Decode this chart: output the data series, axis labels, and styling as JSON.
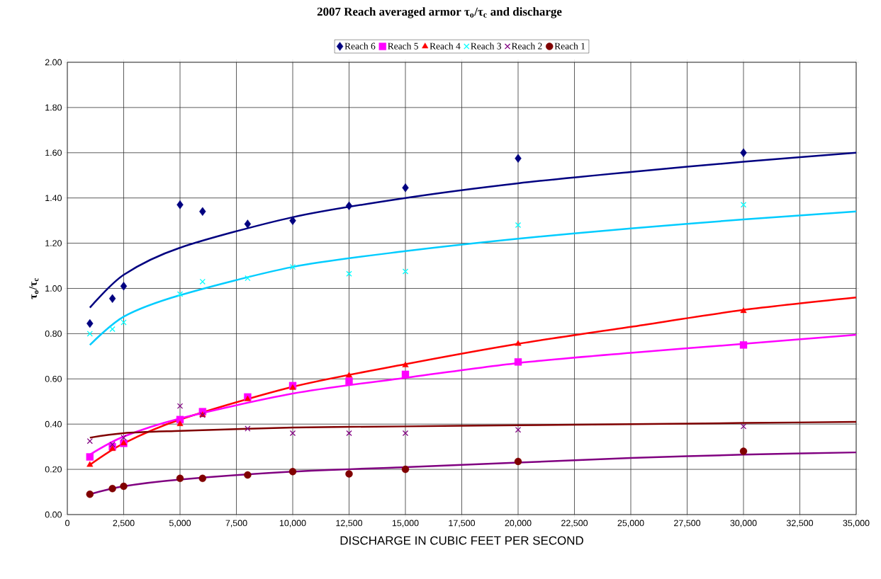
{
  "chart_data": {
    "type": "scatter",
    "title": "2007 Reach averaged armor τ$_{o}$/τ$_{c}$ and discharge",
    "xlabel": "DISCHARGE IN CUBIC FEET PER SECOND",
    "ylabel": "τ$_{o}$/τ$_{c}$",
    "x": [
      1000,
      2000,
      2500,
      5000,
      6000,
      8000,
      10000,
      12500,
      15000,
      20000,
      30000
    ],
    "series": [
      {
        "name": "Reach 6",
        "color": "#000080",
        "marker": "diamond",
        "values": [
          0.845,
          0.955,
          1.01,
          1.37,
          1.34,
          1.285,
          1.3,
          1.365,
          1.445,
          1.575,
          1.6
        ]
      },
      {
        "name": "Reach 5",
        "color": "#ff00ff",
        "marker": "square",
        "values": [
          0.255,
          0.3,
          0.315,
          0.42,
          0.455,
          0.52,
          0.57,
          0.59,
          0.62,
          0.675,
          0.75
        ]
      },
      {
        "name": "Reach 4",
        "color": "#ff0000",
        "marker": "triangle",
        "values": [
          0.22,
          0.29,
          0.315,
          0.4,
          0.44,
          0.51,
          0.56,
          0.615,
          0.66,
          0.755,
          0.9
        ]
      },
      {
        "name": "Reach 3",
        "color": "#00ffff",
        "marker": "cross",
        "values": [
          0.8,
          0.82,
          0.85,
          0.975,
          1.03,
          1.045,
          1.095,
          1.065,
          1.075,
          1.28,
          1.37
        ]
      },
      {
        "name": "Reach 2",
        "color": "#800080",
        "marker": "cross",
        "values": [
          0.325,
          0.31,
          0.34,
          0.48,
          0.44,
          0.38,
          0.36,
          0.36,
          0.36,
          0.375,
          0.39
        ]
      },
      {
        "name": "Reach 1",
        "color": "#800000",
        "marker": "circle",
        "values": [
          0.09,
          0.115,
          0.125,
          0.16,
          0.16,
          0.175,
          0.19,
          0.18,
          0.2,
          0.235,
          0.28
        ]
      },
      {
        "type": "line",
        "color": "#000080",
        "marker": "none",
        "x": [
          1000,
          2500,
          5000,
          10000,
          15000,
          20000,
          25000,
          30000,
          35000
        ],
        "values": [
          0.915,
          1.06,
          1.18,
          1.315,
          1.4,
          1.465,
          1.515,
          1.56,
          1.6
        ]
      },
      {
        "type": "line",
        "color": "#00ccff",
        "marker": "none",
        "x": [
          1000,
          2500,
          5000,
          10000,
          15000,
          20000,
          25000,
          30000,
          35000
        ],
        "values": [
          0.75,
          0.875,
          0.97,
          1.095,
          1.165,
          1.22,
          1.265,
          1.305,
          1.34
        ]
      },
      {
        "type": "line",
        "color": "#ff0000",
        "marker": "none",
        "x": [
          1000,
          2500,
          5000,
          10000,
          15000,
          20000,
          25000,
          30000,
          35000
        ],
        "values": [
          0.22,
          0.315,
          0.42,
          0.565,
          0.665,
          0.755,
          0.83,
          0.905,
          0.96
        ]
      },
      {
        "type": "line",
        "color": "#ff00ff",
        "marker": "none",
        "x": [
          1000,
          2500,
          5000,
          10000,
          15000,
          20000,
          25000,
          30000,
          35000
        ],
        "values": [
          0.265,
          0.345,
          0.425,
          0.535,
          0.605,
          0.67,
          0.715,
          0.755,
          0.795
        ]
      },
      {
        "type": "line",
        "color": "#800000",
        "marker": "none",
        "x": [
          1000,
          2500,
          5000,
          10000,
          15000,
          20000,
          25000,
          30000,
          35000
        ],
        "values": [
          0.34,
          0.36,
          0.37,
          0.385,
          0.39,
          0.395,
          0.4,
          0.405,
          0.41
        ]
      },
      {
        "type": "line",
        "color": "#800080",
        "marker": "none",
        "x": [
          1000,
          2500,
          5000,
          10000,
          15000,
          20000,
          25000,
          30000,
          35000
        ],
        "values": [
          0.09,
          0.125,
          0.155,
          0.19,
          0.21,
          0.23,
          0.25,
          0.265,
          0.275
        ]
      }
    ],
    "xlim": [
      0,
      35000
    ],
    "xticks": [
      0,
      {
        "value": 2500,
        "label": "2,500"
      },
      {
        "value": 5000,
        "label": "5,000"
      },
      {
        "value": 7500,
        "label": "7,500"
      },
      {
        "value": 10000,
        "label": "10,000"
      },
      {
        "value": 12500,
        "label": "12,500"
      },
      {
        "value": 15000,
        "label": "15,000"
      },
      {
        "value": 17500,
        "label": "17,500"
      },
      {
        "value": 20000,
        "label": "20,000"
      },
      {
        "value": 22500,
        "label": "22,500"
      },
      {
        "value": 25000,
        "label": "25,000"
      },
      {
        "value": 27500,
        "label": "27,500"
      },
      {
        "value": 30000,
        "label": "30,000"
      },
      {
        "value": 32500,
        "label": "32,500"
      },
      {
        "value": 35000,
        "label": "35,000"
      }
    ],
    "ylim": [
      0,
      2
    ],
    "yticks": [
      {
        "value": 0,
        "label": "0.00"
      },
      {
        "value": 0.2,
        "label": "0.20"
      },
      {
        "value": 0.4,
        "label": "0.40"
      },
      {
        "value": 0.6,
        "label": "0.60"
      },
      {
        "value": 0.8,
        "label": "0.80"
      },
      {
        "value": 1,
        "label": "1.00"
      },
      {
        "value": 1.2,
        "label": "1.20"
      },
      {
        "value": 1.4,
        "label": "1.40"
      },
      {
        "value": 1.6,
        "label": "1.60"
      },
      {
        "value": 1.8,
        "label": "1.80"
      },
      {
        "value": 2,
        "label": "2.00"
      }
    ],
    "grid": true,
    "legend": "top"
  }
}
